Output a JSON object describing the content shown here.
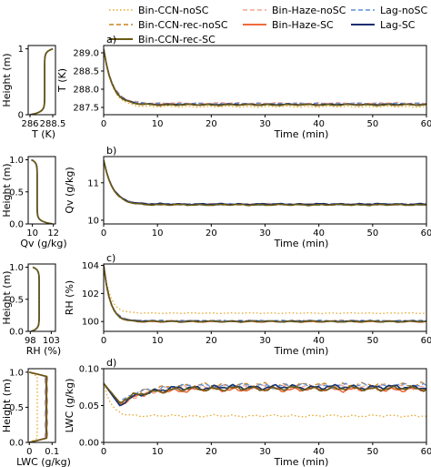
{
  "legend": {
    "placement": "top",
    "entries": [
      {
        "name": "Bin-CCN-noSC",
        "color": "#e6a82a",
        "dash": "dotted"
      },
      {
        "name": "Bin-CCN-rec-noSC",
        "color": "#c8821e",
        "dash": "dashed"
      },
      {
        "name": "Bin-CCN-rec-SC",
        "color": "#6b5a14",
        "dash": "solid"
      },
      {
        "name": "Bin-Haze-noSC",
        "color": "#f4a58e",
        "dash": "dashed"
      },
      {
        "name": "Bin-Haze-SC",
        "color": "#ee6a3c",
        "dash": "solid"
      },
      {
        "name": "Lag-noSC",
        "color": "#5b8fd9",
        "dash": "dashed"
      },
      {
        "name": "Lag-SC",
        "color": "#13306e",
        "dash": "solid"
      }
    ]
  },
  "chart_data": [
    {
      "type": "line",
      "panel": "a)",
      "xlabel": "Time (min)",
      "ylabel": "T (K)",
      "xlim": [
        0,
        60
      ],
      "ylim": [
        287.3,
        289.2
      ],
      "xticks": [
        "0",
        "10",
        "20",
        "30",
        "40",
        "50",
        "60"
      ],
      "yticks": [
        "287.5",
        "288.0",
        "288.5",
        "289.0"
      ],
      "ytick_values": [
        287.5,
        288.0,
        288.5,
        289.0
      ],
      "decay": {
        "start": 289.1,
        "end": 287.6,
        "tau": 1.6
      },
      "series": [
        {
          "name": "Bin-CCN-noSC",
          "final": 287.52
        },
        {
          "name": "Bin-CCN-rec-noSC",
          "final": 287.6
        },
        {
          "name": "Bin-CCN-rec-SC",
          "final": 287.57
        },
        {
          "name": "Bin-Haze-noSC",
          "final": 287.62
        },
        {
          "name": "Bin-Haze-SC",
          "final": 287.58
        },
        {
          "name": "Lag-noSC",
          "final": 287.6
        },
        {
          "name": "Lag-SC",
          "final": 287.58
        }
      ]
    },
    {
      "type": "line",
      "panel": "b)",
      "xlabel": "Time (min)",
      "ylabel": "Qv (g/kg)",
      "xlim": [
        0,
        60
      ],
      "ylim": [
        9.9,
        11.7
      ],
      "xticks": [
        "0",
        "10",
        "20",
        "30",
        "40",
        "50",
        "60"
      ],
      "yticks": [
        "10",
        "11"
      ],
      "ytick_values": [
        10,
        11
      ],
      "decay": {
        "start": 11.6,
        "end": 10.42,
        "tau": 1.7
      },
      "series": [
        {
          "name": "Bin-CCN-noSC",
          "final": 10.42
        },
        {
          "name": "Bin-CCN-rec-noSC",
          "final": 10.42
        },
        {
          "name": "Bin-CCN-rec-SC",
          "final": 10.41
        },
        {
          "name": "Bin-Haze-noSC",
          "final": 10.43
        },
        {
          "name": "Bin-Haze-SC",
          "final": 10.42
        },
        {
          "name": "Lag-noSC",
          "final": 10.42
        },
        {
          "name": "Lag-SC",
          "final": 10.43
        }
      ]
    },
    {
      "type": "line",
      "panel": "c)",
      "xlabel": "Time (min)",
      "ylabel": "RH (%)",
      "xlim": [
        0,
        60
      ],
      "ylim": [
        99.3,
        104.1
      ],
      "xticks": [
        "0",
        "10",
        "20",
        "30",
        "40",
        "50",
        "60"
      ],
      "yticks": [
        "100",
        "102",
        "104"
      ],
      "ytick_values": [
        100,
        102,
        104
      ],
      "decay": {
        "start": 104.0,
        "end": 100.05,
        "tau": 1.2
      },
      "series": [
        {
          "name": "Bin-CCN-noSC",
          "final": 100.6
        },
        {
          "name": "Bin-CCN-rec-noSC",
          "final": 100.05
        },
        {
          "name": "Bin-CCN-rec-SC",
          "final": 100.0
        },
        {
          "name": "Bin-Haze-noSC",
          "final": 100.05
        },
        {
          "name": "Bin-Haze-SC",
          "final": 100.0
        },
        {
          "name": "Lag-noSC",
          "final": 100.05
        },
        {
          "name": "Lag-SC",
          "final": 100.02
        }
      ]
    },
    {
      "type": "line",
      "panel": "d)",
      "xlabel": "Time (min)",
      "ylabel": "LWC (g/kg)",
      "xlim": [
        0,
        60
      ],
      "ylim": [
        0.0,
        0.1
      ],
      "xticks": [
        "0",
        "10",
        "20",
        "30",
        "40",
        "50",
        "60"
      ],
      "yticks": [
        "0.00",
        "0.05",
        "0.10"
      ],
      "ytick_values": [
        0.0,
        0.05,
        0.1
      ],
      "dip": {
        "start": 0.08,
        "min": 0.05,
        "min_t": 3
      },
      "series": [
        {
          "name": "Bin-CCN-noSC",
          "final": 0.036
        },
        {
          "name": "Bin-CCN-rec-noSC",
          "final": 0.078
        },
        {
          "name": "Bin-CCN-rec-SC",
          "final": 0.073
        },
        {
          "name": "Bin-Haze-noSC",
          "final": 0.075
        },
        {
          "name": "Bin-Haze-SC",
          "final": 0.072
        },
        {
          "name": "Lag-noSC",
          "final": 0.077
        },
        {
          "name": "Lag-SC",
          "final": 0.075
        }
      ]
    },
    {
      "type": "line",
      "panel": "profile-T",
      "xlabel": "T (K)",
      "ylabel": "Height (m)",
      "xlim": [
        285.8,
        288.8
      ],
      "ylim": [
        0,
        1.05
      ],
      "xticks": [
        "286",
        "288.5"
      ],
      "xtick_values": [
        286,
        288.5
      ],
      "yticks": [
        "0",
        "1"
      ],
      "ytick_values": [
        0,
        1
      ],
      "bottom": 286.0,
      "bulk": 287.6,
      "top": 288.5
    },
    {
      "type": "line",
      "panel": "profile-Qv",
      "xlabel": "Qv (g/kg)",
      "ylabel": "Height (m)",
      "xlim": [
        9.6,
        12.2
      ],
      "ylim": [
        0,
        1.05
      ],
      "xticks": [
        "10",
        "12"
      ],
      "xtick_values": [
        10,
        12
      ],
      "yticks": [
        "0.0",
        "0.5",
        "1.0"
      ],
      "ytick_values": [
        0.0,
        0.5,
        1.0
      ],
      "bottom": 11.9,
      "bulk": 10.45,
      "top": 9.9
    },
    {
      "type": "line",
      "panel": "profile-RH",
      "xlabel": "RH (%)",
      "ylabel": "Height (m)",
      "xlim": [
        97.5,
        104
      ],
      "ylim": [
        0,
        1.05
      ],
      "xticks": [
        "98",
        "103"
      ],
      "xtick_values": [
        98,
        103
      ],
      "yticks": [
        "0.0",
        "0.5",
        "1.0"
      ],
      "ytick_values": [
        0.0,
        0.5,
        1.0
      ],
      "bottom": 98.2,
      "bulk": 100.1,
      "top": 98.6
    },
    {
      "type": "line",
      "panel": "profile-LWC",
      "xlabel": "LWC (g/kg)",
      "ylabel": "Height (m)",
      "xlim": [
        -0.005,
        0.115
      ],
      "ylim": [
        0,
        1.05
      ],
      "xticks": [
        "0",
        "0.1"
      ],
      "xtick_values": [
        0,
        0.1
      ],
      "yticks": [
        "0.0",
        "0.5",
        "1.0"
      ],
      "ytick_values": [
        0.0,
        0.5,
        1.0
      ],
      "bulk": 0.075,
      "bulk_noSC": 0.035
    }
  ]
}
